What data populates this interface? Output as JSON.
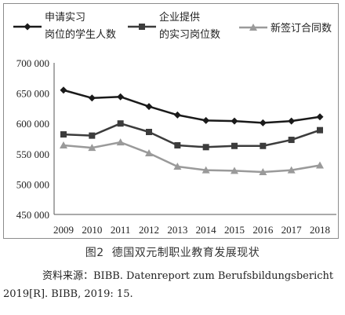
{
  "chart_data": {
    "type": "line",
    "x": [
      "2009",
      "2010",
      "2011",
      "2012",
      "2013",
      "2014",
      "2015",
      "2016",
      "2017",
      "2018"
    ],
    "series": [
      {
        "name": "申请实习岗位的学生人数",
        "legend_lines": [
          "申请实习",
          "岗位的学生人数"
        ],
        "marker": "diamond",
        "color": "#1a1a1a",
        "values": [
          655000,
          642000,
          644000,
          628000,
          614000,
          605000,
          604000,
          601000,
          604000,
          611000
        ]
      },
      {
        "name": "企业提供的实习岗位数",
        "legend_lines": [
          "企业提供",
          "的实习岗位数"
        ],
        "marker": "square",
        "color": "#3c3c3c",
        "values": [
          582000,
          580000,
          600000,
          586000,
          564000,
          561000,
          563000,
          563000,
          573000,
          589000
        ]
      },
      {
        "name": "新签订合同数",
        "legend_lines": [
          "新签订合同数"
        ],
        "marker": "triangle",
        "color": "#9a9a9a",
        "values": [
          564000,
          560000,
          569000,
          551000,
          529000,
          523000,
          522000,
          520000,
          523000,
          531000
        ]
      }
    ],
    "y_ticks": [
      "700 000",
      "650 000",
      "600 000",
      "550 000",
      "500 000",
      "450 000"
    ],
    "ylim": [
      450000,
      700000
    ],
    "grid": false,
    "legend_position": "top"
  },
  "caption": {
    "number": "图2",
    "text": "德国双元制职业教育发展现状"
  },
  "source": {
    "text": "资料来源：BIBB. Datenreport zum Berufsbildungsbericht 2019[R]. BIBB, 2019: 15."
  }
}
